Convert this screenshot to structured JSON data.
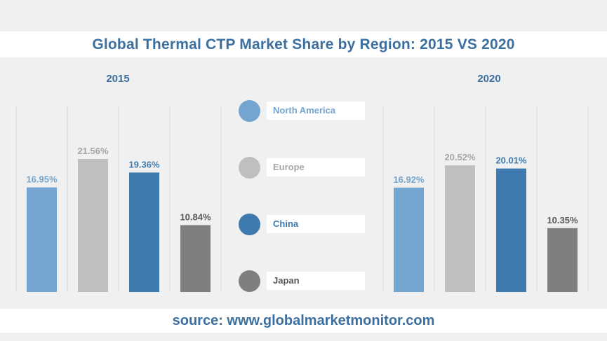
{
  "title": "Global Thermal CTP Market Share by Region: 2015 VS 2020",
  "source": "source: www.globalmarketmonitor.com",
  "colors": {
    "North America": "#74a5d0",
    "Europe": "#bfbfbf",
    "China": "#3e7aad",
    "Japan": "#7f7f7f"
  },
  "legend": [
    {
      "label": "North America",
      "color": "#74a5d0"
    },
    {
      "label": "Europe",
      "color": "#bfbfbf"
    },
    {
      "label": "China",
      "color": "#3e7aad"
    },
    {
      "label": "Japan",
      "color": "#7f7f7f"
    }
  ],
  "chart_data": [
    {
      "type": "bar",
      "title": "2015",
      "categories": [
        "North America",
        "Europe",
        "China",
        "Japan"
      ],
      "values": [
        16.95,
        21.56,
        19.36,
        10.84
      ],
      "labels": [
        "16.95%",
        "21.56%",
        "19.36%",
        "10.84%"
      ],
      "ylim": [
        0,
        30
      ],
      "grid": true
    },
    {
      "type": "bar",
      "title": "2020",
      "categories": [
        "North America",
        "Europe",
        "China",
        "Japan"
      ],
      "values": [
        16.92,
        20.52,
        20.01,
        10.35
      ],
      "labels": [
        "16.92%",
        "20.52%",
        "20.01%",
        "10.35%"
      ],
      "ylim": [
        0,
        30
      ],
      "grid": true
    }
  ]
}
